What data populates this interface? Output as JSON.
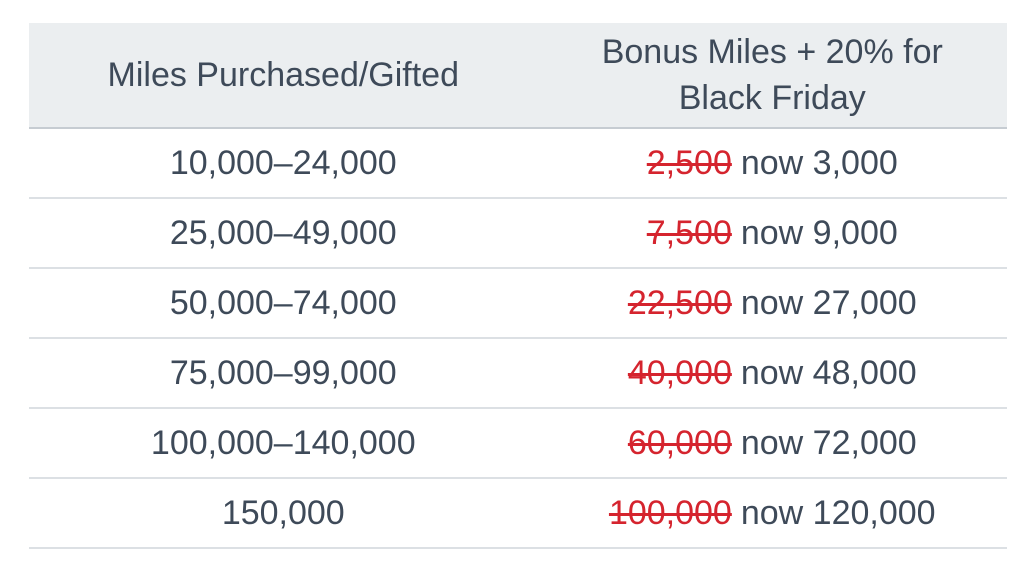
{
  "colors": {
    "header_bg": "#ebeef0",
    "header_border": "#c6ccd2",
    "row_border": "#dce0e4",
    "text_dark": "#3e4a59",
    "strike_red": "#d5242e"
  },
  "table": {
    "headers": [
      {
        "label": "Miles Purchased/Gifted"
      },
      {
        "label": "Bonus Miles + 20% for Black Friday"
      }
    ],
    "rows": [
      {
        "miles_range": "10,000–24,000",
        "old_bonus": "2,500",
        "new_bonus": "now 3,000"
      },
      {
        "miles_range": "25,000–49,000",
        "old_bonus": "7,500",
        "new_bonus": "now 9,000"
      },
      {
        "miles_range": "50,000–74,000",
        "old_bonus": "22,500",
        "new_bonus": "now 27,000"
      },
      {
        "miles_range": "75,000–99,000",
        "old_bonus": "40,000",
        "new_bonus": "now 48,000"
      },
      {
        "miles_range": "100,000–140,000",
        "old_bonus": "60,000",
        "new_bonus": "now 72,000"
      },
      {
        "miles_range": "150,000",
        "old_bonus": "100,000",
        "new_bonus": "now 120,000"
      }
    ]
  }
}
